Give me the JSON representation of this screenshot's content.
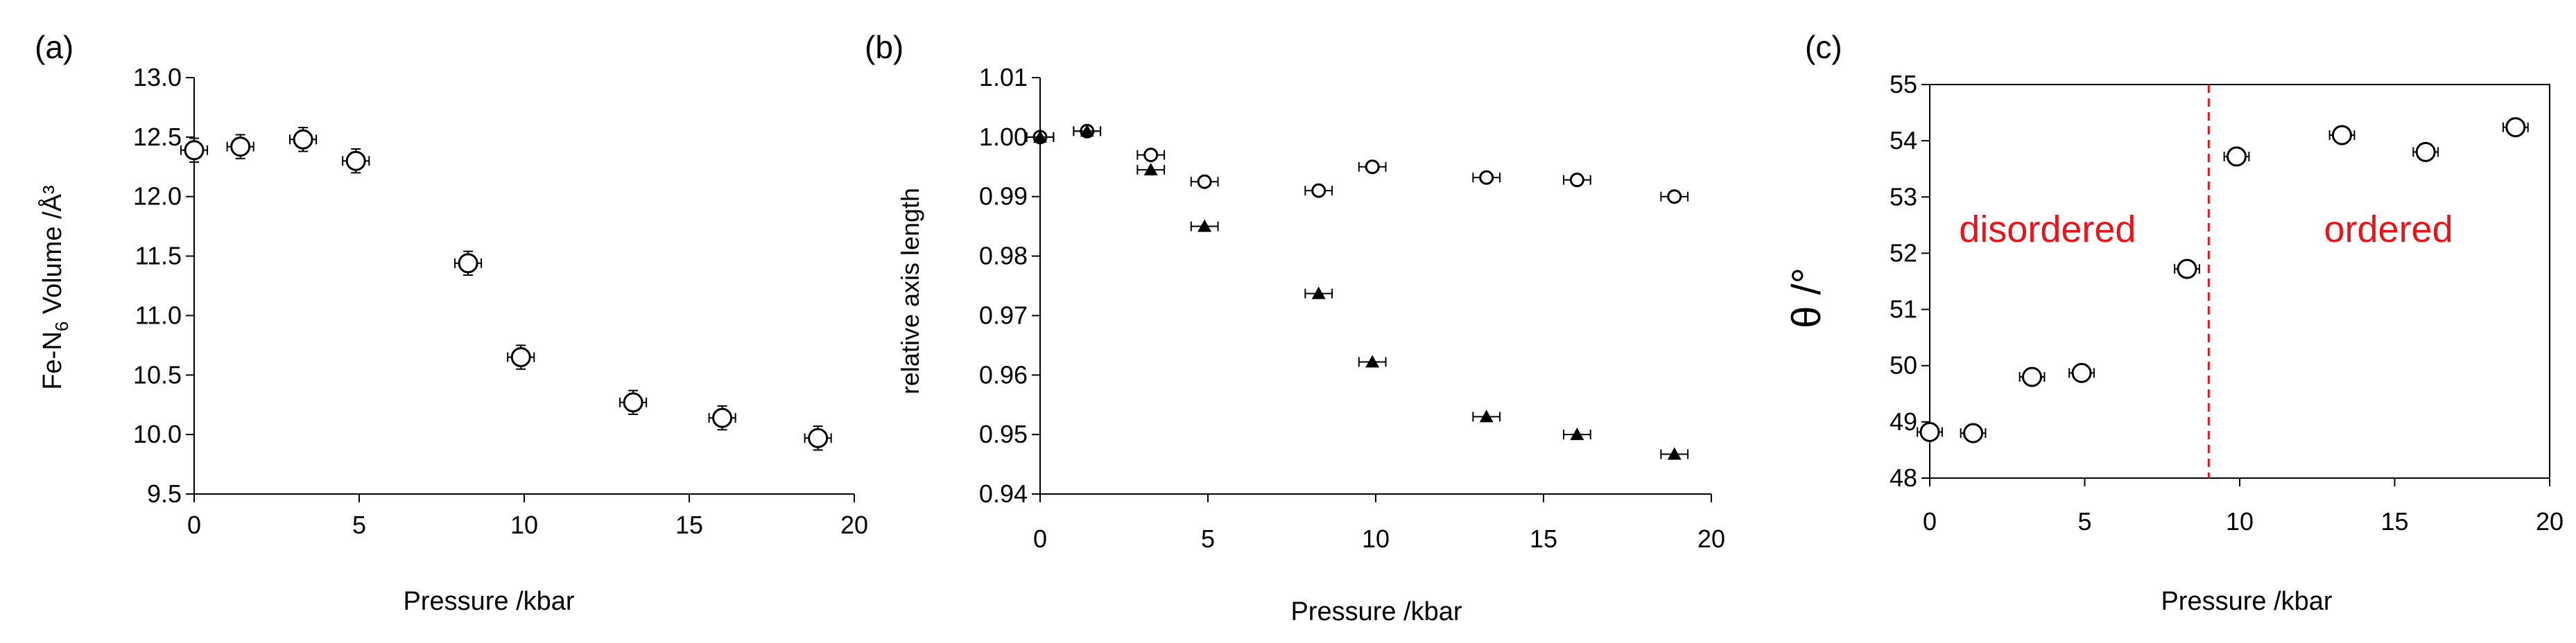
{
  "chart_data": [
    {
      "panel_label": "(a)",
      "type": "scatter",
      "xlabel": "Pressure /kbar",
      "ylabel_main": "Fe-N",
      "ylabel_sub": "6",
      "ylabel_rest": " Volume /Å³",
      "xlim": [
        0,
        20
      ],
      "ylim": [
        9.5,
        13.0
      ],
      "xticks": [
        0,
        5,
        10,
        15,
        20
      ],
      "yticks": [
        9.5,
        10.0,
        10.5,
        11.0,
        11.5,
        12.0,
        12.5,
        13.0
      ],
      "ytick_labels": [
        "9.5",
        "10.0",
        "10.5",
        "11.0",
        "11.5",
        "12.0",
        "12.5",
        "13.0"
      ],
      "series": [
        {
          "marker": "open-circle",
          "x": [
            0.0,
            1.4,
            3.3,
            4.9,
            8.3,
            9.9,
            13.3,
            16.0,
            18.9
          ],
          "y": [
            12.39,
            12.42,
            12.48,
            12.3,
            11.44,
            10.65,
            10.27,
            10.14,
            9.97
          ],
          "xerr": [
            0.4,
            0.4,
            0.4,
            0.4,
            0.4,
            0.4,
            0.4,
            0.4,
            0.4
          ],
          "yerr": [
            0.1,
            0.1,
            0.1,
            0.1,
            0.1,
            0.1,
            0.1,
            0.1,
            0.1
          ]
        }
      ]
    },
    {
      "panel_label": "(b)",
      "type": "scatter",
      "xlabel": "Pressure /kbar",
      "ylabel": "relative axis length",
      "xlim": [
        0,
        20
      ],
      "ylim": [
        0.94,
        1.01
      ],
      "xticks": [
        0,
        5,
        10,
        15,
        20
      ],
      "yticks": [
        0.94,
        0.95,
        0.96,
        0.97,
        0.98,
        0.99,
        1.0,
        1.01
      ],
      "ytick_labels": [
        "0.94",
        "0.95",
        "0.96",
        "0.97",
        "0.98",
        "0.99",
        "1.00",
        "1.01"
      ],
      "series": [
        {
          "marker": "open-circle",
          "x": [
            0.0,
            1.4,
            3.3,
            4.9,
            8.3,
            9.9,
            13.3,
            16.0,
            18.9
          ],
          "y": [
            1.0,
            1.001,
            0.997,
            0.9925,
            0.991,
            0.995,
            0.9932,
            0.9928,
            0.99
          ],
          "xerr": [
            0.4,
            0.4,
            0.4,
            0.4,
            0.4,
            0.4,
            0.4,
            0.4,
            0.4
          ]
        },
        {
          "marker": "filled-triangle",
          "x": [
            0.0,
            1.4,
            3.3,
            4.9,
            8.3,
            9.9,
            13.3,
            16.0,
            18.9
          ],
          "y": [
            1.0,
            1.001,
            0.9945,
            0.985,
            0.9737,
            0.9622,
            0.953,
            0.95,
            0.9467
          ],
          "xerr": [
            0.4,
            0.4,
            0.4,
            0.4,
            0.4,
            0.4,
            0.4,
            0.4,
            0.4
          ]
        }
      ]
    },
    {
      "panel_label": "(c)",
      "type": "scatter",
      "xlabel": "Pressure /kbar",
      "ylabel": "θ /°",
      "xlim": [
        0,
        20
      ],
      "ylim": [
        48,
        55
      ],
      "xticks": [
        0,
        5,
        10,
        15,
        20
      ],
      "yticks": [
        48,
        49,
        50,
        51,
        52,
        53,
        54,
        55
      ],
      "ytick_labels": [
        "48",
        "49",
        "50",
        "51",
        "52",
        "53",
        "54",
        "55"
      ],
      "vline": {
        "x": 9.0,
        "color": "#e8141b",
        "style": "dashed"
      },
      "annotations": [
        {
          "text": "disordered",
          "x": 3.8,
          "y": 52.2,
          "color": "#e8141b"
        },
        {
          "text": "ordered",
          "x": 14.8,
          "y": 52.2,
          "color": "#e8141b"
        }
      ],
      "series": [
        {
          "marker": "open-circle",
          "x": [
            0.0,
            1.4,
            3.3,
            4.9,
            8.3,
            9.9,
            13.3,
            16.0,
            18.9
          ],
          "y": [
            48.82,
            48.8,
            49.8,
            49.87,
            51.72,
            53.72,
            54.1,
            53.8,
            54.24
          ],
          "xerr": [
            0.4,
            0.4,
            0.4,
            0.4,
            0.4,
            0.4,
            0.4,
            0.4,
            0.4
          ]
        }
      ]
    }
  ]
}
